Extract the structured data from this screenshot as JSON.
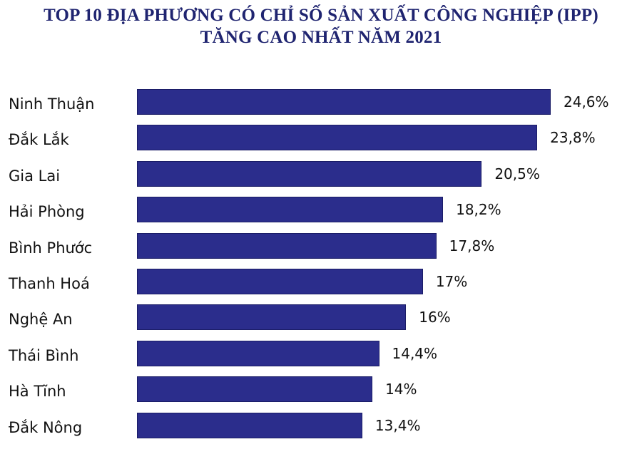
{
  "title": {
    "line1": "TOP 10 ĐỊA PHƯƠNG CÓ CHỈ SỐ SẢN XUẤT CÔNG NGHIỆP (IPP)",
    "line2": "TĂNG CAO NHẤT NĂM 2021"
  },
  "colors": {
    "bar": "#2b2d8c",
    "title": "#1f2470",
    "text": "#111111"
  },
  "chart_data": {
    "type": "bar",
    "orientation": "horizontal",
    "title": "TOP 10 ĐỊA PHƯƠNG CÓ CHỈ SỐ SẢN XUẤT CÔNG NGHIỆP (IPP) TĂNG CAO NHẤT NĂM 2021",
    "xlabel": "",
    "ylabel": "",
    "categories": [
      "Ninh Thuận",
      "Đắk Lắk",
      "Gia Lai",
      "Hải Phòng",
      "Bình Phước",
      "Thanh Hoá",
      "Nghệ An",
      "Thái Bình",
      "Hà Tĩnh",
      "Đắk Nông"
    ],
    "values": [
      24.6,
      23.8,
      20.5,
      18.2,
      17.8,
      17,
      16,
      14.4,
      14,
      13.4
    ],
    "value_labels": [
      "24,6%",
      "23,8%",
      "20,5%",
      "18,2%",
      "17,8%",
      "17%",
      "16%",
      "14,4%",
      "14%",
      "13,4%"
    ],
    "unit": "%",
    "grid": false,
    "legend": null,
    "xlim": [
      0,
      25
    ]
  }
}
